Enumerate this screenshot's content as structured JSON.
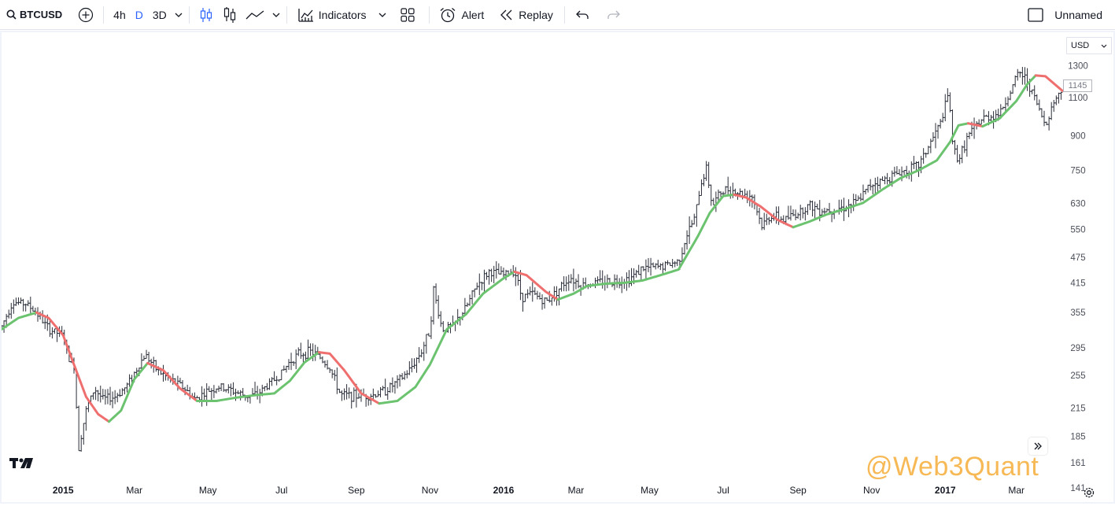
{
  "toolbar": {
    "symbol": "BTCUSD",
    "intervals": [
      {
        "label": "4h",
        "active": false
      },
      {
        "label": "D",
        "active": true
      },
      {
        "label": "3D",
        "active": false
      }
    ],
    "indicators_label": "Indicators",
    "alert_label": "Alert",
    "replay_label": "Replay",
    "layout_name": "Unnamed"
  },
  "currency": "USD",
  "last_price_label": "1145",
  "watermark": "@Web3Quant",
  "colors": {
    "candle": "#2a2e39",
    "ma_up": "#6cc36f",
    "ma_down": "#ef6f6f",
    "accent": "#2962ff",
    "watermark": "#f7b955"
  },
  "chart_data": {
    "type": "line",
    "y_scale": "log",
    "ylim": [
      131,
      1550
    ],
    "y_ticks": [
      141,
      161,
      185,
      215,
      255,
      295,
      355,
      415,
      475,
      550,
      630,
      750,
      900,
      1100,
      1300
    ],
    "x_ticks": [
      "2015",
      "Mar",
      "May",
      "Jul",
      "Sep",
      "Nov",
      "2016",
      "Mar",
      "May",
      "Jul",
      "Sep",
      "Nov",
      "2017",
      "Mar"
    ],
    "x_tick_dates": [
      "2015-01-01",
      "2015-03-01",
      "2015-05-01",
      "2015-07-01",
      "2015-09-01",
      "2015-11-01",
      "2016-01-01",
      "2016-03-01",
      "2016-05-01",
      "2016-07-01",
      "2016-09-01",
      "2016-11-01",
      "2017-01-01",
      "2017-03-01"
    ],
    "xlim": [
      "2014-11-11",
      "2017-04-08"
    ],
    "series": [
      {
        "kind": "price",
        "points": [
          [
            "2014-11-11",
            330
          ],
          [
            "2014-11-20",
            375
          ],
          [
            "2014-12-01",
            372
          ],
          [
            "2014-12-10",
            355
          ],
          [
            "2014-12-20",
            325
          ],
          [
            "2015-01-01",
            315
          ],
          [
            "2015-01-06",
            278
          ],
          [
            "2015-01-10",
            268
          ],
          [
            "2015-01-14",
            175
          ],
          [
            "2015-01-20",
            212
          ],
          [
            "2015-01-27",
            238
          ],
          [
            "2015-02-03",
            225
          ],
          [
            "2015-02-13",
            228
          ],
          [
            "2015-02-22",
            240
          ],
          [
            "2015-03-01",
            258
          ],
          [
            "2015-03-10",
            285
          ],
          [
            "2015-03-20",
            262
          ],
          [
            "2015-04-01",
            248
          ],
          [
            "2015-04-10",
            240
          ],
          [
            "2015-04-20",
            225
          ],
          [
            "2015-05-01",
            235
          ],
          [
            "2015-05-10",
            240
          ],
          [
            "2015-05-20",
            236
          ],
          [
            "2015-06-01",
            229
          ],
          [
            "2015-06-10",
            230
          ],
          [
            "2015-06-20",
            243
          ],
          [
            "2015-07-01",
            258
          ],
          [
            "2015-07-08",
            275
          ],
          [
            "2015-07-15",
            285
          ],
          [
            "2015-07-25",
            289
          ],
          [
            "2015-08-01",
            282
          ],
          [
            "2015-08-10",
            265
          ],
          [
            "2015-08-19",
            230
          ],
          [
            "2015-09-01",
            229
          ],
          [
            "2015-09-15",
            230
          ],
          [
            "2015-09-25",
            236
          ],
          [
            "2015-10-05",
            246
          ],
          [
            "2015-10-15",
            262
          ],
          [
            "2015-10-25",
            290
          ],
          [
            "2015-11-01",
            325
          ],
          [
            "2015-11-04",
            400
          ],
          [
            "2015-11-11",
            325
          ],
          [
            "2015-11-20",
            330
          ],
          [
            "2015-12-01",
            365
          ],
          [
            "2015-12-10",
            410
          ],
          [
            "2015-12-20",
            440
          ],
          [
            "2016-01-01",
            432
          ],
          [
            "2016-01-10",
            445
          ],
          [
            "2016-01-16",
            385
          ],
          [
            "2016-01-25",
            392
          ],
          [
            "2016-02-05",
            375
          ],
          [
            "2016-02-15",
            400
          ],
          [
            "2016-02-25",
            428
          ],
          [
            "2016-03-05",
            410
          ],
          [
            "2016-03-15",
            414
          ],
          [
            "2016-03-25",
            418
          ],
          [
            "2016-04-05",
            420
          ],
          [
            "2016-04-15",
            425
          ],
          [
            "2016-04-25",
            448
          ],
          [
            "2016-05-05",
            450
          ],
          [
            "2016-05-15",
            455
          ],
          [
            "2016-05-25",
            465
          ],
          [
            "2016-06-01",
            535
          ],
          [
            "2016-06-08",
            590
          ],
          [
            "2016-06-12",
            690
          ],
          [
            "2016-06-17",
            760
          ],
          [
            "2016-06-22",
            620
          ],
          [
            "2016-06-28",
            665
          ],
          [
            "2016-07-05",
            680
          ],
          [
            "2016-07-15",
            665
          ],
          [
            "2016-07-25",
            655
          ],
          [
            "2016-08-02",
            560
          ],
          [
            "2016-08-10",
            592
          ],
          [
            "2016-08-20",
            578
          ],
          [
            "2016-09-01",
            600
          ],
          [
            "2016-09-10",
            625
          ],
          [
            "2016-09-20",
            608
          ],
          [
            "2016-10-01",
            612
          ],
          [
            "2016-10-10",
            618
          ],
          [
            "2016-10-20",
            635
          ],
          [
            "2016-11-01",
            700
          ],
          [
            "2016-11-10",
            710
          ],
          [
            "2016-11-20",
            735
          ],
          [
            "2016-12-01",
            752
          ],
          [
            "2016-12-10",
            770
          ],
          [
            "2016-12-20",
            870
          ],
          [
            "2016-12-28",
            960
          ],
          [
            "2017-01-04",
            1130
          ],
          [
            "2017-01-07",
            860
          ],
          [
            "2017-01-12",
            790
          ],
          [
            "2017-01-20",
            900
          ],
          [
            "2017-02-01",
            985
          ],
          [
            "2017-02-15",
            1010
          ],
          [
            "2017-02-25",
            1150
          ],
          [
            "2017-03-03",
            1260
          ],
          [
            "2017-03-10",
            1200
          ],
          [
            "2017-03-17",
            1080
          ],
          [
            "2017-03-25",
            950
          ],
          [
            "2017-04-01",
            1080
          ],
          [
            "2017-04-08",
            1145
          ]
        ]
      },
      {
        "kind": "moving-average",
        "points": [
          [
            "2014-11-11",
            325
          ],
          [
            "2014-11-25",
            345
          ],
          [
            "2014-12-10",
            355
          ],
          [
            "2014-12-20",
            345
          ],
          [
            "2015-01-01",
            315
          ],
          [
            "2015-01-10",
            270
          ],
          [
            "2015-01-20",
            228
          ],
          [
            "2015-01-30",
            208
          ],
          [
            "2015-02-08",
            200
          ],
          [
            "2015-02-18",
            212
          ],
          [
            "2015-03-01",
            250
          ],
          [
            "2015-03-12",
            272
          ],
          [
            "2015-03-25",
            262
          ],
          [
            "2015-04-08",
            238
          ],
          [
            "2015-04-22",
            223
          ],
          [
            "2015-05-08",
            223
          ],
          [
            "2015-05-25",
            227
          ],
          [
            "2015-06-10",
            230
          ],
          [
            "2015-06-25",
            232
          ],
          [
            "2015-07-08",
            248
          ],
          [
            "2015-07-20",
            273
          ],
          [
            "2015-08-01",
            288
          ],
          [
            "2015-08-10",
            286
          ],
          [
            "2015-08-22",
            262
          ],
          [
            "2015-09-05",
            232
          ],
          [
            "2015-09-20",
            220
          ],
          [
            "2015-10-05",
            223
          ],
          [
            "2015-10-20",
            240
          ],
          [
            "2015-11-01",
            270
          ],
          [
            "2015-11-15",
            325
          ],
          [
            "2015-12-01",
            352
          ],
          [
            "2015-12-15",
            392
          ],
          [
            "2016-01-01",
            425
          ],
          [
            "2016-01-10",
            440
          ],
          [
            "2016-01-20",
            432
          ],
          [
            "2016-02-05",
            396
          ],
          [
            "2016-02-15",
            380
          ],
          [
            "2016-02-28",
            392
          ],
          [
            "2016-03-10",
            408
          ],
          [
            "2016-03-25",
            413
          ],
          [
            "2016-04-10",
            415
          ],
          [
            "2016-04-25",
            420
          ],
          [
            "2016-05-10",
            432
          ],
          [
            "2016-05-25",
            445
          ],
          [
            "2016-06-10",
            530
          ],
          [
            "2016-06-20",
            600
          ],
          [
            "2016-07-01",
            655
          ],
          [
            "2016-07-10",
            660
          ],
          [
            "2016-07-20",
            650
          ],
          [
            "2016-08-01",
            620
          ],
          [
            "2016-08-15",
            578
          ],
          [
            "2016-08-28",
            556
          ],
          [
            "2016-09-10",
            572
          ],
          [
            "2016-09-25",
            595
          ],
          [
            "2016-10-10",
            612
          ],
          [
            "2016-10-25",
            632
          ],
          [
            "2016-11-10",
            678
          ],
          [
            "2016-11-25",
            720
          ],
          [
            "2016-12-10",
            750
          ],
          [
            "2016-12-25",
            790
          ],
          [
            "2017-01-05",
            870
          ],
          [
            "2017-01-12",
            950
          ],
          [
            "2017-01-20",
            960
          ],
          [
            "2017-02-01",
            945
          ],
          [
            "2017-02-15",
            985
          ],
          [
            "2017-03-01",
            1080
          ],
          [
            "2017-03-10",
            1180
          ],
          [
            "2017-03-17",
            1235
          ],
          [
            "2017-03-25",
            1230
          ],
          [
            "2017-04-08",
            1140
          ]
        ]
      }
    ]
  }
}
